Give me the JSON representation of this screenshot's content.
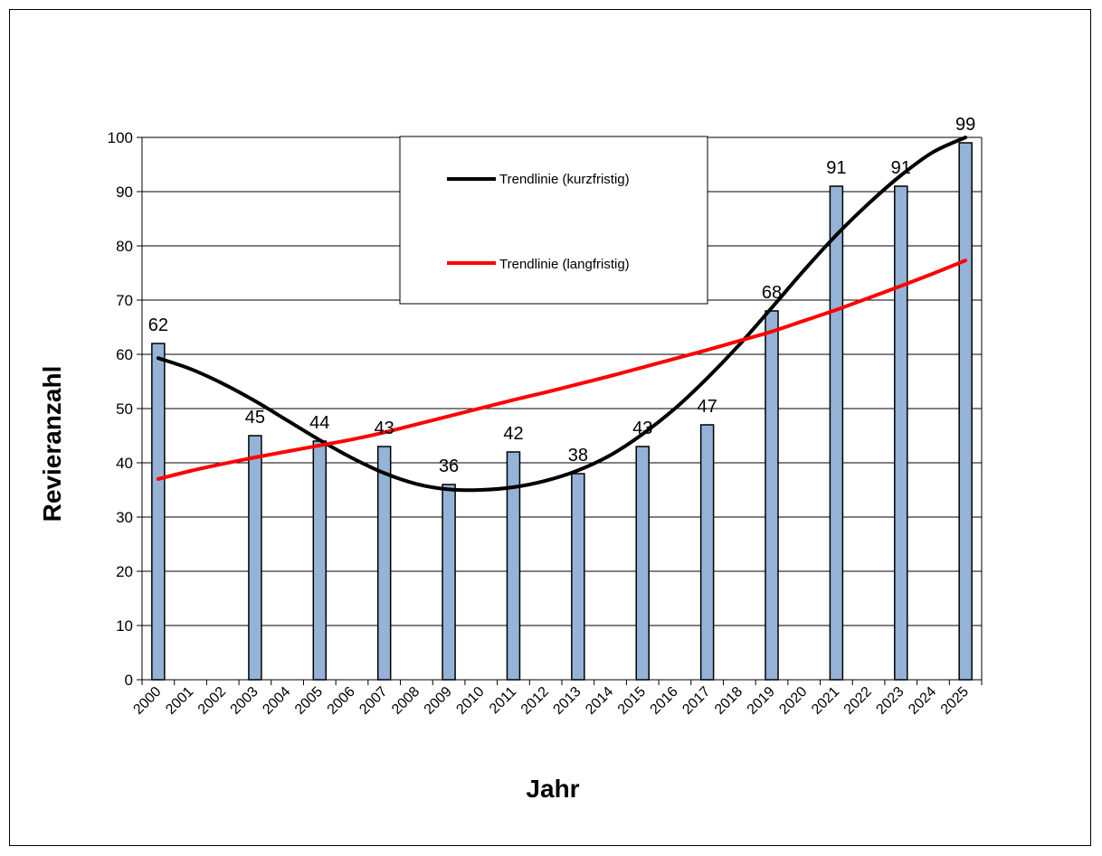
{
  "chart_data": {
    "type": "bar",
    "title": "",
    "xlabel": "Jahr",
    "ylabel": "Revieranzahl",
    "ylim": [
      0,
      100
    ],
    "yticks": [
      0,
      10,
      20,
      30,
      40,
      50,
      60,
      70,
      80,
      90,
      100
    ],
    "grid": true,
    "categories": [
      "2000",
      "2001",
      "2002",
      "2003",
      "2004",
      "2005",
      "2006",
      "2007",
      "2008",
      "2009",
      "2010",
      "2011",
      "2012",
      "2013",
      "2014",
      "2015",
      "2016",
      "2017",
      "2018",
      "2019",
      "2020",
      "2021",
      "2022",
      "2023",
      "2024",
      "2025"
    ],
    "bars": [
      {
        "category": "2000",
        "value": 62
      },
      {
        "category": "2003",
        "value": 45
      },
      {
        "category": "2005",
        "value": 44
      },
      {
        "category": "2007",
        "value": 43
      },
      {
        "category": "2009",
        "value": 36
      },
      {
        "category": "2011",
        "value": 42
      },
      {
        "category": "2013",
        "value": 38
      },
      {
        "category": "2015",
        "value": 43
      },
      {
        "category": "2017",
        "value": 47
      },
      {
        "category": "2019",
        "value": 68
      },
      {
        "category": "2021",
        "value": 91
      },
      {
        "category": "2023",
        "value": 91
      },
      {
        "category": "2025",
        "value": 99
      }
    ],
    "trendlines": [
      {
        "name": "Trendlinie (kurzfristig)",
        "color": "#000000",
        "points": [
          [
            2000,
            59.3
          ],
          [
            2001,
            57.3
          ],
          [
            2002,
            54.6
          ],
          [
            2003,
            51.4
          ],
          [
            2004,
            47.8
          ],
          [
            2005,
            44.2
          ],
          [
            2006,
            40.9
          ],
          [
            2007,
            38.1
          ],
          [
            2008,
            36.1
          ],
          [
            2009,
            35.1
          ],
          [
            2010,
            35.0
          ],
          [
            2011,
            35.5
          ],
          [
            2012,
            36.7
          ],
          [
            2013,
            38.6
          ],
          [
            2014,
            41.4
          ],
          [
            2015,
            45.3
          ],
          [
            2016,
            50.0
          ],
          [
            2017,
            55.6
          ],
          [
            2018,
            61.8
          ],
          [
            2019,
            68.6
          ],
          [
            2020,
            75.5
          ],
          [
            2021,
            82.0
          ],
          [
            2022,
            87.8
          ],
          [
            2023,
            93.0
          ],
          [
            2024,
            97.3
          ],
          [
            2025,
            100
          ]
        ]
      },
      {
        "name": "Trendlinie (langfristig)",
        "color": "#ff0000",
        "points": [
          [
            2000,
            37.0
          ],
          [
            2001,
            38.5
          ],
          [
            2002,
            39.8
          ],
          [
            2003,
            41.0
          ],
          [
            2004,
            42.1
          ],
          [
            2005,
            43.2
          ],
          [
            2006,
            44.3
          ],
          [
            2007,
            45.6
          ],
          [
            2008,
            47.1
          ],
          [
            2009,
            48.6
          ],
          [
            2010,
            50.1
          ],
          [
            2011,
            51.6
          ],
          [
            2012,
            53.0
          ],
          [
            2013,
            54.5
          ],
          [
            2014,
            56.0
          ],
          [
            2015,
            57.6
          ],
          [
            2016,
            59.2
          ],
          [
            2017,
            60.8
          ],
          [
            2018,
            62.5
          ],
          [
            2019,
            64.2
          ],
          [
            2020,
            66.2
          ],
          [
            2021,
            68.2
          ],
          [
            2022,
            70.4
          ],
          [
            2023,
            72.6
          ],
          [
            2024,
            74.9
          ],
          [
            2025,
            77.3
          ]
        ]
      }
    ],
    "bar_color": "#95b3d7",
    "legend": {
      "position": "top-center"
    }
  }
}
